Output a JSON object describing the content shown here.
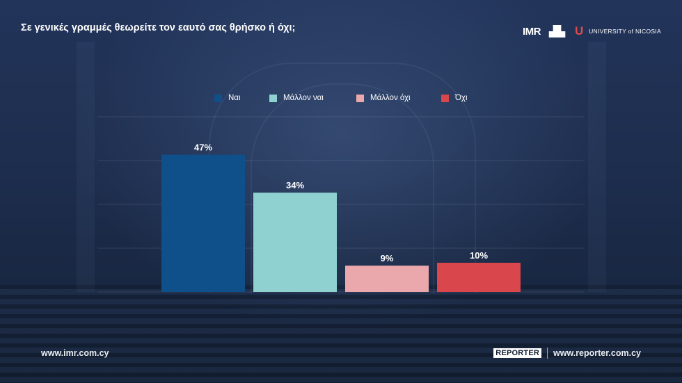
{
  "header": {
    "title": "Σε γενικές γραμμές θεωρείτε τον εαυτό σας θρήσκο ή όχι;",
    "logos": {
      "imr": "IMR",
      "university": "UNIVERSITY of NICOSIA"
    }
  },
  "chart_data": {
    "type": "bar",
    "categories": [
      "Ναι",
      "Μάλλον ναι",
      "Μάλλον όχι",
      "Όχι"
    ],
    "values": [
      47,
      34,
      9,
      10
    ],
    "value_labels": [
      "47%",
      "34%",
      "9%",
      "10%"
    ],
    "colors": [
      "#0f4f8a",
      "#8fd1d0",
      "#eba8ac",
      "#d9464c"
    ],
    "legend_position": "top-center",
    "ylim": [
      0,
      60
    ],
    "grid": true
  },
  "footer": {
    "left_url": "www.imr.com.cy",
    "reporter_logo": "REPORTER",
    "right_url": "www.reporter.com.cy"
  }
}
